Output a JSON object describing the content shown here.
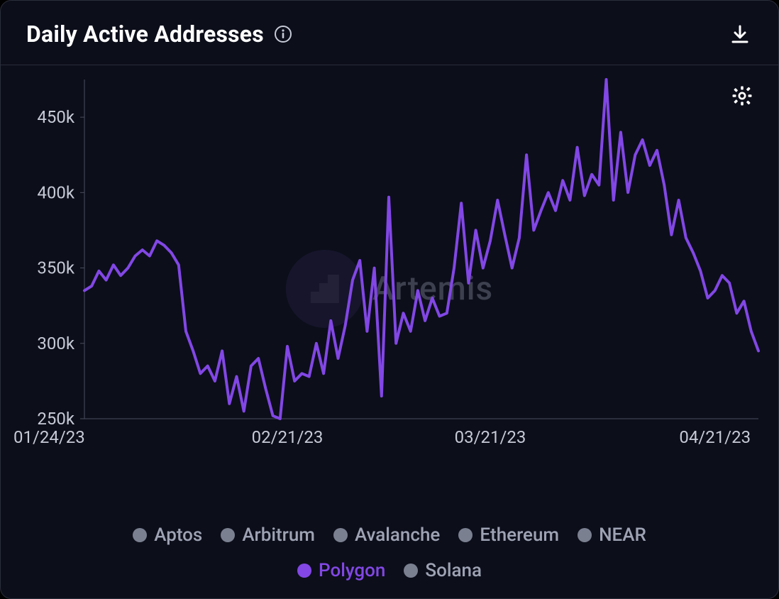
{
  "header": {
    "title": "Daily Active Addresses"
  },
  "watermark": {
    "text": "Artemis"
  },
  "chart": {
    "type": "line",
    "background_color": "#0c0e1a",
    "axis_color": "#4a4e5e",
    "tick_label_color": "#c6cad6",
    "tick_fontsize": 24,
    "line_color": "#8247e5",
    "line_width": 4,
    "ylim": [
      250000,
      475000
    ],
    "yticks": [
      {
        "value": 250000,
        "label": "250k"
      },
      {
        "value": 300000,
        "label": "300k"
      },
      {
        "value": 350000,
        "label": "350k"
      },
      {
        "value": 400000,
        "label": "400k"
      },
      {
        "value": 450000,
        "label": "450k"
      }
    ],
    "xticks": [
      {
        "index": 0,
        "label": "01/24/23"
      },
      {
        "index": 28,
        "label": "02/21/23"
      },
      {
        "index": 56,
        "label": "03/21/23"
      },
      {
        "index": 87,
        "label": "04/21/23"
      }
    ],
    "values": [
      335000,
      338000,
      348000,
      342000,
      352000,
      345000,
      350000,
      358000,
      362000,
      358000,
      368000,
      365000,
      360000,
      352000,
      308000,
      295000,
      280000,
      285000,
      275000,
      295000,
      260000,
      278000,
      255000,
      285000,
      290000,
      270000,
      252000,
      250000,
      298000,
      275000,
      280000,
      278000,
      300000,
      280000,
      315000,
      290000,
      312000,
      342000,
      355000,
      308000,
      350000,
      265000,
      397000,
      300000,
      320000,
      308000,
      335000,
      315000,
      330000,
      318000,
      320000,
      350000,
      393000,
      340000,
      375000,
      350000,
      368000,
      395000,
      372000,
      350000,
      370000,
      425000,
      375000,
      388000,
      400000,
      388000,
      408000,
      395000,
      430000,
      398000,
      412000,
      405000,
      475000,
      395000,
      440000,
      400000,
      425000,
      435000,
      418000,
      428000,
      405000,
      372000,
      395000,
      370000,
      360000,
      348000,
      330000,
      335000,
      345000,
      340000,
      320000,
      328000,
      308000,
      295000
    ]
  },
  "legend": {
    "inactive_color": "#7b8091",
    "inactive_text_color": "#9ea3b4",
    "items": [
      {
        "label": "Aptos",
        "color": "#7b8091",
        "text_color": "#9ea3b4",
        "active": false
      },
      {
        "label": "Arbitrum",
        "color": "#7b8091",
        "text_color": "#9ea3b4",
        "active": false
      },
      {
        "label": "Avalanche",
        "color": "#7b8091",
        "text_color": "#9ea3b4",
        "active": false
      },
      {
        "label": "Ethereum",
        "color": "#7b8091",
        "text_color": "#9ea3b4",
        "active": false
      },
      {
        "label": "NEAR",
        "color": "#7b8091",
        "text_color": "#9ea3b4",
        "active": false
      },
      {
        "label": "Polygon",
        "color": "#8247e5",
        "text_color": "#8247e5",
        "active": true
      },
      {
        "label": "Solana",
        "color": "#7b8091",
        "text_color": "#9ea3b4",
        "active": false
      }
    ]
  },
  "icons": {
    "info_stroke": "#c6cad6",
    "download_color": "#ffffff",
    "gear_color": "#ffffff"
  }
}
